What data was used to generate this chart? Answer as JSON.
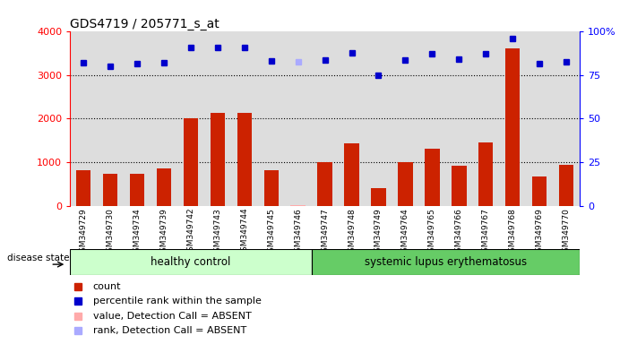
{
  "title": "GDS4719 / 205771_s_at",
  "samples": [
    "GSM349729",
    "GSM349730",
    "GSM349734",
    "GSM349739",
    "GSM349742",
    "GSM349743",
    "GSM349744",
    "GSM349745",
    "GSM349746",
    "GSM349747",
    "GSM349748",
    "GSM349749",
    "GSM349764",
    "GSM349765",
    "GSM349766",
    "GSM349767",
    "GSM349768",
    "GSM349769",
    "GSM349770"
  ],
  "counts": [
    820,
    740,
    740,
    860,
    2000,
    2130,
    2130,
    830,
    30,
    1010,
    1440,
    420,
    1010,
    1310,
    920,
    1460,
    3600,
    680,
    950
  ],
  "percentiles": [
    82,
    80,
    81.5,
    81.75,
    90.75,
    90.75,
    90.5,
    82.75,
    82.5,
    83.25,
    87.5,
    74.5,
    83.5,
    87,
    83.75,
    87,
    95.5,
    81.25,
    82.25
  ],
  "absent_count_idx": [
    8
  ],
  "absent_rank_idx": [
    8
  ],
  "n_healthy": 9,
  "n_lupus": 10,
  "healthy_color": "#ccffcc",
  "lupus_color": "#66cc66",
  "bar_color": "#cc2200",
  "dot_color": "#0000cc",
  "absent_bar_color": "#ffaaaa",
  "absent_dot_color": "#aaaaff",
  "ylim_left": [
    0,
    4000
  ],
  "ylim_right": [
    0,
    100
  ],
  "yticks_left": [
    0,
    1000,
    2000,
    3000,
    4000
  ],
  "yticks_right": [
    0,
    25,
    50,
    75,
    100
  ],
  "ytick_labels_right": [
    "0",
    "25",
    "50",
    "75",
    "100%"
  ],
  "bg_color": "#ffffff",
  "col_bg_color": "#dddddd"
}
